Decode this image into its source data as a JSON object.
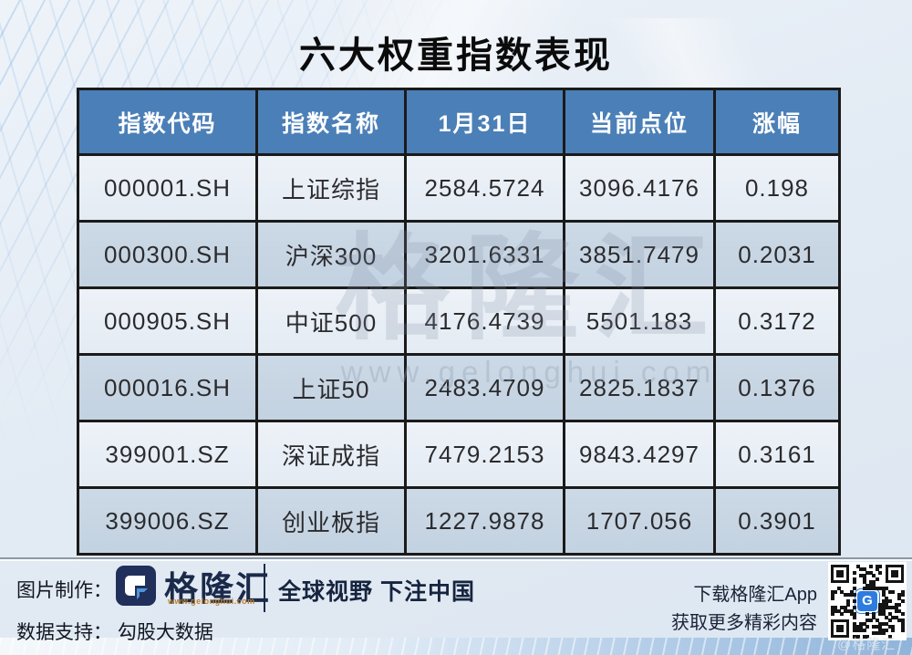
{
  "chart_data": {
    "type": "table",
    "title": "六大权重指数表现",
    "columns": [
      "指数代码",
      "指数名称",
      "1月31日",
      "当前点位",
      "涨幅"
    ],
    "rows": [
      [
        "000001.SH",
        "上证综指",
        "2584.5724",
        "3096.4176",
        "0.198"
      ],
      [
        "000300.SH",
        "沪深300",
        "3201.6331",
        "3851.7479",
        "0.2031"
      ],
      [
        "000905.SH",
        "中证500",
        "4176.4739",
        "5501.183",
        "0.3172"
      ],
      [
        "000016.SH",
        "上证50",
        "2483.4709",
        "2825.1837",
        "0.1376"
      ],
      [
        "399001.SZ",
        "深证成指",
        "7479.2153",
        "9843.4297",
        "0.3161"
      ],
      [
        "399006.SZ",
        "创业板指",
        "1227.9878",
        "1707.056",
        "0.3901"
      ]
    ]
  },
  "watermark": {
    "brand": "格隆汇",
    "url": "www.gelonghui.com"
  },
  "footer": {
    "made_by_label": "图片制作：",
    "brand": "格隆汇",
    "brand_url": "www.gelonghui.com",
    "logo_letter": "G",
    "slogan": "全球视野 下注中国",
    "data_support": "数据支持： 勾股大数据",
    "download_line1": "下载格隆汇App",
    "download_line2": "获取更多精彩内容",
    "qr_watermark": "@格隆汇"
  },
  "colors": {
    "header_bg": "#4b7fb7",
    "row_light": "#e9eff6",
    "row_dark": "#c7d6e4",
    "table_border": "#1a1a1a",
    "brand_navy": "#1b2a4a",
    "brand_accent_blue": "#4e94d6",
    "qr_logo_blue": "#2e7ce0",
    "url_orange": "#bc8030"
  }
}
